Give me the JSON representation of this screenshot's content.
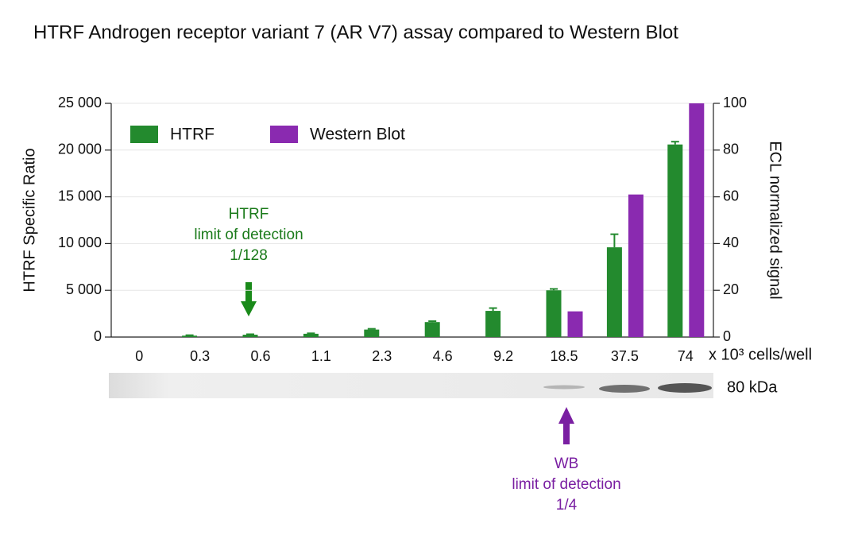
{
  "chart_data": {
    "type": "bar",
    "title": "HTRF Androgen receptor variant 7 (AR V7) assay compared to Western Blot",
    "categories": [
      "0",
      "0.3",
      "0.6",
      "1.1",
      "2.3",
      "4.6",
      "9.2",
      "18.5",
      "37.5",
      "74"
    ],
    "x_label": "x 10³ cells/well",
    "y_label": "HTRF Specific Ratio",
    "y2_label": "ECL normalized signal",
    "series": [
      {
        "name": "HTRF",
        "color": "#238a2e",
        "values": [
          0,
          150,
          250,
          350,
          800,
          1600,
          2800,
          5000,
          9600,
          20600
        ],
        "errors": [
          0,
          50,
          50,
          50,
          80,
          100,
          300,
          150,
          1400,
          300
        ]
      },
      {
        "name": "Western Blot",
        "color": "#8a2ab0",
        "axis": "y2",
        "values": [
          0,
          0,
          0,
          0,
          0,
          0,
          0,
          11,
          61,
          100
        ]
      }
    ],
    "ylim": [
      0,
      25000
    ],
    "yticks": [
      0,
      {
        "value": 5000,
        "label": "5 000"
      },
      {
        "value": 10000,
        "label": "10 000"
      },
      {
        "value": 15000,
        "label": "15 000"
      },
      {
        "value": 20000,
        "label": "20 000"
      },
      {
        "value": 25000,
        "label": "25 000"
      }
    ],
    "y2lim": [
      0,
      100
    ],
    "y2ticks": [
      0,
      20,
      40,
      60,
      80,
      100
    ],
    "grid": true,
    "legend": "top-left",
    "annotations": [
      {
        "lines": [
          "HTRF",
          "limit of detection",
          "1/128"
        ],
        "color": "#1a7a1a"
      },
      {
        "lines": [
          "WB",
          "limit of detection",
          "1/4"
        ],
        "color": "#7a1fa2"
      }
    ],
    "blot_label": "80 kDa"
  }
}
